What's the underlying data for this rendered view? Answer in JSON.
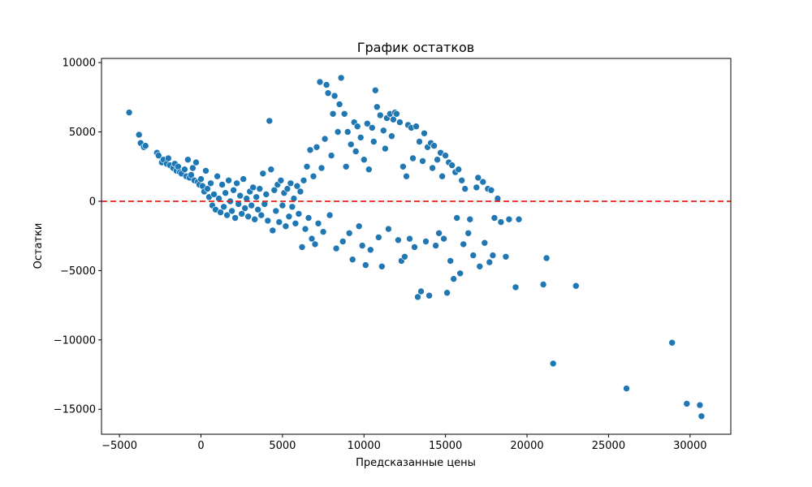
{
  "chart_data": {
    "type": "scatter",
    "title": "График остатков",
    "xlabel": "Предсказанные цены",
    "ylabel": "Остатки",
    "xlim": [
      -6100,
      32500
    ],
    "ylim": [
      -16800,
      10300
    ],
    "x_ticks": [
      {
        "value": -5000,
        "label": "−5000"
      },
      {
        "value": 0,
        "label": "0"
      },
      {
        "value": 5000,
        "label": "5000"
      },
      {
        "value": 10000,
        "label": "10000"
      },
      {
        "value": 15000,
        "label": "15000"
      },
      {
        "value": 20000,
        "label": "20000"
      },
      {
        "value": 25000,
        "label": "25000"
      },
      {
        "value": 30000,
        "label": "30000"
      }
    ],
    "y_ticks": [
      {
        "value": -15000,
        "label": "−15000"
      },
      {
        "value": -10000,
        "label": "−10000"
      },
      {
        "value": -5000,
        "label": "−5000"
      },
      {
        "value": 0,
        "label": "0"
      },
      {
        "value": 5000,
        "label": "5000"
      },
      {
        "value": 10000,
        "label": "10000"
      }
    ],
    "reference_line": {
      "y": 0,
      "color": "#e8231a",
      "style": "dashed"
    },
    "point_color": "#1f77b4",
    "grid": false,
    "points": [
      [
        -4400,
        6400
      ],
      [
        -3800,
        4800
      ],
      [
        -3700,
        4200
      ],
      [
        -3500,
        3900
      ],
      [
        -3400,
        4000
      ],
      [
        -2700,
        3500
      ],
      [
        -2600,
        3300
      ],
      [
        -2400,
        2800
      ],
      [
        -2300,
        3000
      ],
      [
        -2100,
        2700
      ],
      [
        -2000,
        3100
      ],
      [
        -1900,
        2600
      ],
      [
        -1700,
        2400
      ],
      [
        -1600,
        2700
      ],
      [
        -1500,
        2200
      ],
      [
        -1400,
        2500
      ],
      [
        -1300,
        2100
      ],
      [
        -1200,
        2000
      ],
      [
        -1000,
        2300
      ],
      [
        -900,
        1800
      ],
      [
        -800,
        3000
      ],
      [
        -700,
        1700
      ],
      [
        -600,
        1900
      ],
      [
        -500,
        2400
      ],
      [
        -400,
        1500
      ],
      [
        -300,
        2800
      ],
      [
        -200,
        1400
      ],
      [
        -100,
        1200
      ],
      [
        0,
        1600
      ],
      [
        100,
        1100
      ],
      [
        200,
        700
      ],
      [
        300,
        2200
      ],
      [
        400,
        900
      ],
      [
        500,
        300
      ],
      [
        600,
        1300
      ],
      [
        700,
        -300
      ],
      [
        800,
        500
      ],
      [
        900,
        -600
      ],
      [
        1000,
        1800
      ],
      [
        1100,
        200
      ],
      [
        1200,
        -800
      ],
      [
        1300,
        1200
      ],
      [
        1400,
        -400
      ],
      [
        1500,
        600
      ],
      [
        1600,
        -1000
      ],
      [
        1700,
        1500
      ],
      [
        1800,
        0
      ],
      [
        1900,
        -700
      ],
      [
        2000,
        800
      ],
      [
        2100,
        -1200
      ],
      [
        2200,
        1300
      ],
      [
        2300,
        -200
      ],
      [
        2400,
        400
      ],
      [
        2500,
        -900
      ],
      [
        2600,
        1600
      ],
      [
        2700,
        -500
      ],
      [
        2800,
        200
      ],
      [
        2900,
        -1100
      ],
      [
        3000,
        700
      ],
      [
        3100,
        -300
      ],
      [
        3200,
        1000
      ],
      [
        3300,
        -1300
      ],
      [
        3400,
        300
      ],
      [
        3500,
        -600
      ],
      [
        3600,
        900
      ],
      [
        3700,
        -1000
      ],
      [
        3800,
        2000
      ],
      [
        3900,
        -200
      ],
      [
        4000,
        500
      ],
      [
        4100,
        -1400
      ],
      [
        4200,
        5800
      ],
      [
        4300,
        2300
      ],
      [
        4400,
        -2100
      ],
      [
        4500,
        800
      ],
      [
        4600,
        -700
      ],
      [
        4700,
        1200
      ],
      [
        4800,
        -1500
      ],
      [
        4900,
        1500
      ],
      [
        5000,
        -300
      ],
      [
        5100,
        600
      ],
      [
        5200,
        -1800
      ],
      [
        5300,
        900
      ],
      [
        5400,
        -1100
      ],
      [
        5500,
        1300
      ],
      [
        5600,
        -400
      ],
      [
        5700,
        200
      ],
      [
        5800,
        -1600
      ],
      [
        5900,
        1100
      ],
      [
        6000,
        -900
      ],
      [
        6100,
        700
      ],
      [
        6200,
        -3300
      ],
      [
        6300,
        1500
      ],
      [
        6400,
        -2000
      ],
      [
        6500,
        2500
      ],
      [
        6600,
        -1200
      ],
      [
        6700,
        3700
      ],
      [
        6800,
        -2700
      ],
      [
        6900,
        1800
      ],
      [
        7000,
        -3100
      ],
      [
        7100,
        3900
      ],
      [
        7200,
        -1600
      ],
      [
        7300,
        8600
      ],
      [
        7400,
        2400
      ],
      [
        7500,
        -2200
      ],
      [
        7600,
        4500
      ],
      [
        7700,
        8400
      ],
      [
        7800,
        7800
      ],
      [
        7900,
        -1000
      ],
      [
        8000,
        3300
      ],
      [
        8100,
        6300
      ],
      [
        8200,
        7600
      ],
      [
        8300,
        -3400
      ],
      [
        8400,
        5000
      ],
      [
        8500,
        7000
      ],
      [
        8600,
        8900
      ],
      [
        8700,
        -2900
      ],
      [
        8800,
        6300
      ],
      [
        8900,
        2500
      ],
      [
        9000,
        5000
      ],
      [
        9100,
        -2300
      ],
      [
        9200,
        4100
      ],
      [
        9300,
        -4200
      ],
      [
        9400,
        5700
      ],
      [
        9500,
        3600
      ],
      [
        9600,
        5400
      ],
      [
        9700,
        -1800
      ],
      [
        9800,
        4600
      ],
      [
        9900,
        -3200
      ],
      [
        10000,
        3000
      ],
      [
        10100,
        -4600
      ],
      [
        10200,
        5600
      ],
      [
        10300,
        2300
      ],
      [
        10400,
        -3500
      ],
      [
        10500,
        5300
      ],
      [
        10600,
        4300
      ],
      [
        10700,
        8000
      ],
      [
        10800,
        6800
      ],
      [
        10900,
        -2600
      ],
      [
        11000,
        6200
      ],
      [
        11100,
        -4700
      ],
      [
        11200,
        5100
      ],
      [
        11300,
        3800
      ],
      [
        11400,
        6000
      ],
      [
        11500,
        -2000
      ],
      [
        11600,
        6300
      ],
      [
        11700,
        4700
      ],
      [
        11800,
        5900
      ],
      [
        11900,
        6400
      ],
      [
        12000,
        6300
      ],
      [
        12100,
        -2800
      ],
      [
        12200,
        5700
      ],
      [
        12300,
        -4300
      ],
      [
        12400,
        2500
      ],
      [
        12500,
        -4000
      ],
      [
        12600,
        1800
      ],
      [
        12700,
        5500
      ],
      [
        12800,
        -2700
      ],
      [
        12900,
        5300
      ],
      [
        13000,
        3100
      ],
      [
        13100,
        -3300
      ],
      [
        13200,
        5400
      ],
      [
        13300,
        -6900
      ],
      [
        13400,
        4300
      ],
      [
        13500,
        -6500
      ],
      [
        13600,
        2900
      ],
      [
        13700,
        4900
      ],
      [
        13800,
        -2900
      ],
      [
        13900,
        3900
      ],
      [
        14000,
        -6800
      ],
      [
        14100,
        4200
      ],
      [
        14200,
        2400
      ],
      [
        14300,
        4000
      ],
      [
        14400,
        -3200
      ],
      [
        14500,
        3000
      ],
      [
        14600,
        -2300
      ],
      [
        14700,
        3500
      ],
      [
        14800,
        1800
      ],
      [
        14900,
        -2700
      ],
      [
        15000,
        3300
      ],
      [
        15100,
        -6600
      ],
      [
        15200,
        2800
      ],
      [
        15300,
        -4300
      ],
      [
        15400,
        2600
      ],
      [
        15500,
        -5600
      ],
      [
        15600,
        2100
      ],
      [
        15700,
        -1200
      ],
      [
        15800,
        2300
      ],
      [
        15900,
        -5200
      ],
      [
        16000,
        1500
      ],
      [
        16100,
        -3100
      ],
      [
        16200,
        900
      ],
      [
        16400,
        -2300
      ],
      [
        16500,
        -1300
      ],
      [
        16700,
        -3900
      ],
      [
        16900,
        1000
      ],
      [
        17000,
        1700
      ],
      [
        17100,
        -4700
      ],
      [
        17300,
        1400
      ],
      [
        17400,
        -3000
      ],
      [
        17600,
        900
      ],
      [
        17700,
        -4400
      ],
      [
        17800,
        800
      ],
      [
        17900,
        -3900
      ],
      [
        18000,
        -1200
      ],
      [
        18200,
        200
      ],
      [
        18400,
        -1500
      ],
      [
        18700,
        -4000
      ],
      [
        18900,
        -1300
      ],
      [
        19300,
        -6200
      ],
      [
        19500,
        -1300
      ],
      [
        21000,
        -6000
      ],
      [
        21200,
        -4100
      ],
      [
        21600,
        -11700
      ],
      [
        23000,
        -6100
      ],
      [
        26100,
        -13500
      ],
      [
        28900,
        -10200
      ],
      [
        29800,
        -14600
      ],
      [
        30600,
        -14700
      ],
      [
        30700,
        -15500
      ]
    ]
  }
}
